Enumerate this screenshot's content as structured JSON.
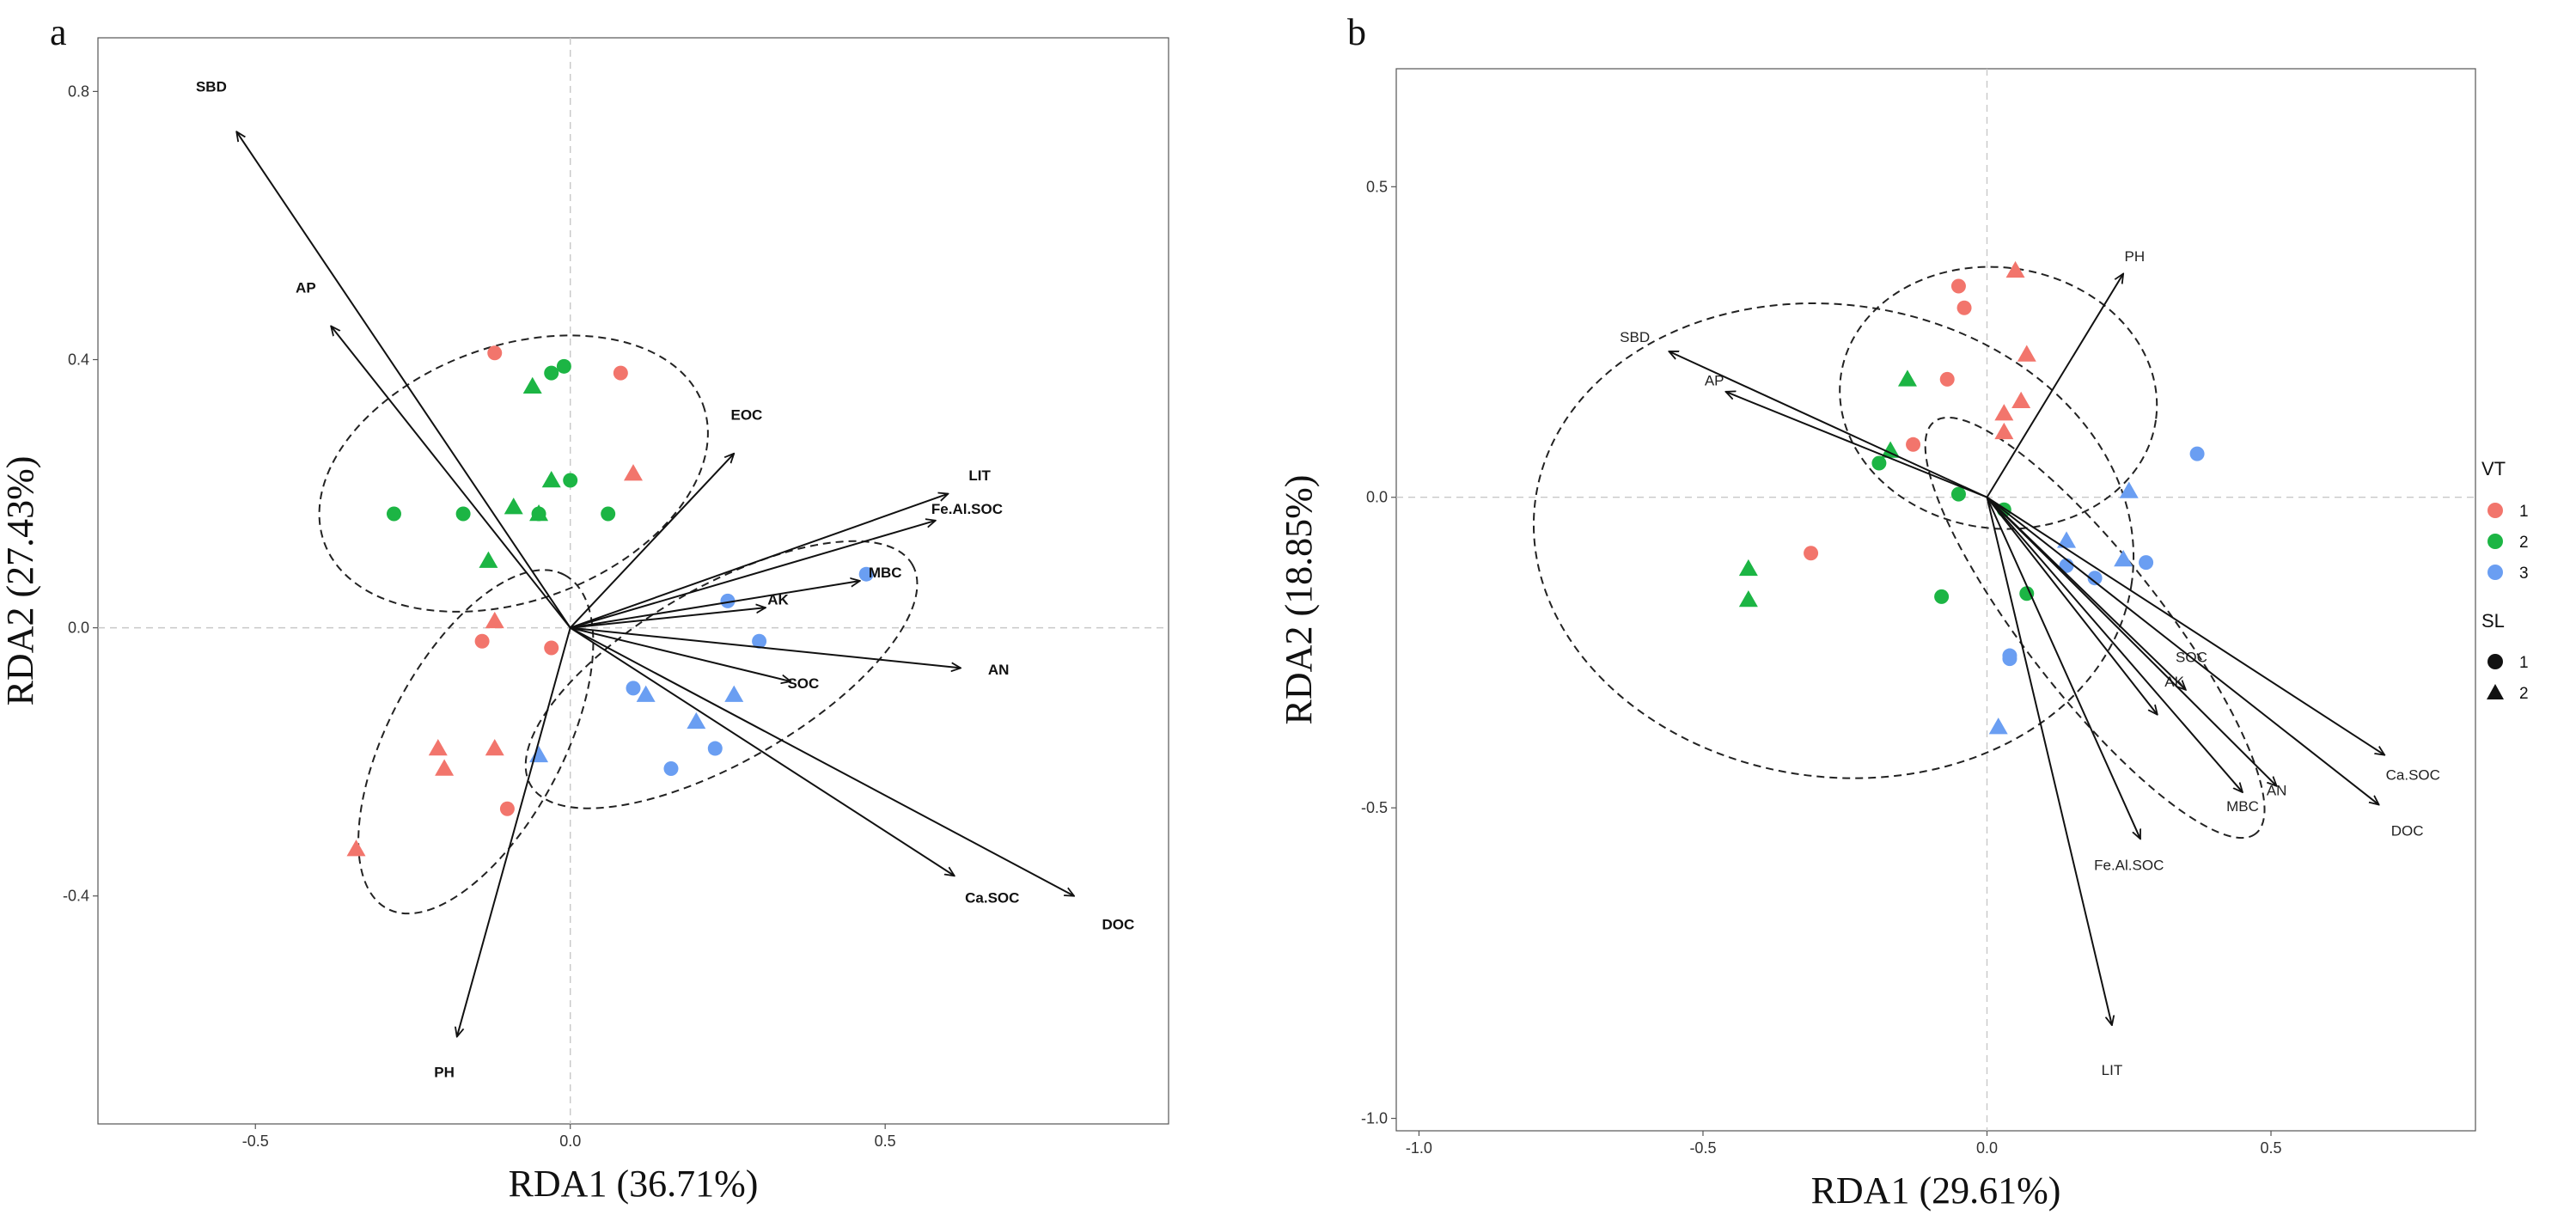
{
  "chart_data": [
    {
      "type": "scatter",
      "panel_label": "a",
      "xlabel": "RDA1  (36.71%)",
      "ylabel": "RDA2 (27.43%)",
      "xlim": [
        -0.75,
        0.95
      ],
      "ylim": [
        -0.74,
        0.88
      ],
      "xticks": [
        -0.5,
        0.0,
        0.5
      ],
      "xtick_labels": [
        "-0.5",
        "0.0",
        "0.5"
      ],
      "yticks": [
        -0.4,
        0.0,
        0.4,
        0.8
      ],
      "ytick_labels": [
        "-0.4",
        "0.0",
        "0.4",
        "0.8"
      ],
      "arrows": [
        {
          "label": "SBD",
          "x": -0.53,
          "y": 0.74,
          "lx": -0.57,
          "ly": 0.8
        },
        {
          "label": "AP",
          "x": -0.38,
          "y": 0.45,
          "lx": -0.42,
          "ly": 0.5
        },
        {
          "label": "EOC",
          "x": 0.26,
          "y": 0.26,
          "lx": 0.28,
          "ly": 0.31
        },
        {
          "label": "LIT",
          "x": 0.6,
          "y": 0.2,
          "lx": 0.65,
          "ly": 0.22
        },
        {
          "label": "Fe.Al.SOC",
          "x": 0.58,
          "y": 0.16,
          "lx": 0.63,
          "ly": 0.17
        },
        {
          "label": "MBC",
          "x": 0.46,
          "y": 0.07,
          "lx": 0.5,
          "ly": 0.075
        },
        {
          "label": "AK",
          "x": 0.31,
          "y": 0.03,
          "lx": 0.33,
          "ly": 0.035
        },
        {
          "label": "AN",
          "x": 0.62,
          "y": -0.06,
          "lx": 0.68,
          "ly": -0.07
        },
        {
          "label": "SOC",
          "x": 0.35,
          "y": -0.08,
          "lx": 0.37,
          "ly": -0.09
        },
        {
          "label": "Ca.SOC",
          "x": 0.61,
          "y": -0.37,
          "lx": 0.67,
          "ly": -0.41
        },
        {
          "label": "DOC",
          "x": 0.8,
          "y": -0.4,
          "lx": 0.87,
          "ly": -0.45
        },
        {
          "label": "PH",
          "x": -0.18,
          "y": -0.61,
          "lx": -0.2,
          "ly": -0.67
        }
      ],
      "points": [
        {
          "x": 0.08,
          "y": 0.38,
          "vt": 1,
          "sl": 1
        },
        {
          "x": -0.12,
          "y": 0.41,
          "vt": 1,
          "sl": 1
        },
        {
          "x": 0.1,
          "y": 0.23,
          "vt": 1,
          "sl": 2
        },
        {
          "x": -0.01,
          "y": 0.39,
          "vt": 2,
          "sl": 1
        },
        {
          "x": -0.05,
          "y": 0.17,
          "vt": 2,
          "sl": 1
        },
        {
          "x": -0.03,
          "y": 0.38,
          "vt": 2,
          "sl": 1
        },
        {
          "x": -0.06,
          "y": 0.36,
          "vt": 2,
          "sl": 2
        },
        {
          "x": 0.0,
          "y": 0.22,
          "vt": 2,
          "sl": 1
        },
        {
          "x": -0.03,
          "y": 0.22,
          "vt": 2,
          "sl": 2
        },
        {
          "x": -0.28,
          "y": 0.17,
          "vt": 2,
          "sl": 1
        },
        {
          "x": -0.17,
          "y": 0.17,
          "vt": 2,
          "sl": 1
        },
        {
          "x": -0.09,
          "y": 0.18,
          "vt": 2,
          "sl": 2
        },
        {
          "x": -0.05,
          "y": 0.17,
          "vt": 2,
          "sl": 2
        },
        {
          "x": 0.06,
          "y": 0.17,
          "vt": 2,
          "sl": 1
        },
        {
          "x": -0.13,
          "y": 0.1,
          "vt": 2,
          "sl": 2
        },
        {
          "x": -0.12,
          "y": 0.01,
          "vt": 1,
          "sl": 2
        },
        {
          "x": -0.14,
          "y": -0.02,
          "vt": 1,
          "sl": 1
        },
        {
          "x": -0.03,
          "y": -0.03,
          "vt": 1,
          "sl": 1
        },
        {
          "x": -0.21,
          "y": -0.18,
          "vt": 1,
          "sl": 2
        },
        {
          "x": -0.12,
          "y": -0.18,
          "vt": 1,
          "sl": 2
        },
        {
          "x": -0.2,
          "y": -0.21,
          "vt": 1,
          "sl": 2
        },
        {
          "x": -0.1,
          "y": -0.27,
          "vt": 1,
          "sl": 1
        },
        {
          "x": -0.34,
          "y": -0.33,
          "vt": 1,
          "sl": 2
        },
        {
          "x": 0.25,
          "y": 0.04,
          "vt": 3,
          "sl": 1
        },
        {
          "x": 0.3,
          "y": -0.02,
          "vt": 3,
          "sl": 1
        },
        {
          "x": 0.1,
          "y": -0.09,
          "vt": 3,
          "sl": 1
        },
        {
          "x": 0.12,
          "y": -0.1,
          "vt": 3,
          "sl": 2
        },
        {
          "x": 0.26,
          "y": -0.1,
          "vt": 3,
          "sl": 2
        },
        {
          "x": 0.23,
          "y": -0.18,
          "vt": 3,
          "sl": 1
        },
        {
          "x": 0.2,
          "y": -0.14,
          "vt": 3,
          "sl": 2
        },
        {
          "x": 0.16,
          "y": -0.21,
          "vt": 3,
          "sl": 1
        },
        {
          "x": -0.05,
          "y": -0.19,
          "vt": 3,
          "sl": 2
        },
        {
          "x": 0.47,
          "y": 0.08,
          "vt": 3,
          "sl": 1
        }
      ],
      "ellipses": [
        {
          "cx": -0.09,
          "cy": 0.23,
          "rx": 0.32,
          "ry": 0.19,
          "angle": 20
        },
        {
          "cx": -0.15,
          "cy": -0.17,
          "rx": 0.3,
          "ry": 0.13,
          "angle": 62
        },
        {
          "cx": 0.24,
          "cy": -0.07,
          "rx": 0.35,
          "ry": 0.13,
          "angle": 30
        }
      ]
    },
    {
      "type": "scatter",
      "panel_label": "b",
      "xlabel": "RDA1 (29.61%)",
      "ylabel": "RDA2 (18.85%)",
      "xlim": [
        -1.04,
        0.86
      ],
      "ylim": [
        -1.02,
        0.69
      ],
      "xticks": [
        -1.0,
        -0.5,
        0.0,
        0.5
      ],
      "xtick_labels": [
        "-1.0",
        "-0.5",
        "0.0",
        "0.5"
      ],
      "yticks": [
        -1.0,
        -0.5,
        0.0,
        0.5
      ],
      "ytick_labels": [
        "-1.0",
        "-0.5",
        "0.0",
        "0.5"
      ],
      "arrows": [
        {
          "label": "PH",
          "x": 0.24,
          "y": 0.36,
          "lx": 0.26,
          "ly": 0.38
        },
        {
          "label": "SBD",
          "x": -0.56,
          "y": 0.235,
          "lx": -0.62,
          "ly": 0.25
        },
        {
          "label": "AP",
          "x": -0.46,
          "y": 0.17,
          "lx": -0.48,
          "ly": 0.18
        },
        {
          "label": "SOC",
          "x": 0.35,
          "y": -0.31,
          "lx": 0.36,
          "ly": -0.265
        },
        {
          "label": "AK",
          "x": 0.3,
          "y": -0.35,
          "lx": 0.33,
          "ly": -0.305
        },
        {
          "label": "Ca.SOC",
          "x": 0.7,
          "y": -0.415,
          "lx": 0.75,
          "ly": -0.455
        },
        {
          "label": "DOC",
          "x": 0.69,
          "y": -0.495,
          "lx": 0.74,
          "ly": -0.545
        },
        {
          "label": "AN",
          "x": 0.51,
          "y": -0.465,
          "lx": 0.51,
          "ly": -0.48
        },
        {
          "label": "MBC",
          "x": 0.45,
          "y": -0.475,
          "lx": 0.45,
          "ly": -0.505
        },
        {
          "label": "Fe.Al.SOC",
          "x": 0.27,
          "y": -0.55,
          "lx": 0.25,
          "ly": -0.6
        },
        {
          "label": "LIT",
          "x": 0.22,
          "y": -0.85,
          "lx": 0.22,
          "ly": -0.93
        }
      ],
      "points": [
        {
          "x": -0.05,
          "y": 0.34,
          "vt": 1,
          "sl": 1
        },
        {
          "x": -0.04,
          "y": 0.305,
          "vt": 1,
          "sl": 1
        },
        {
          "x": 0.05,
          "y": 0.365,
          "vt": 1,
          "sl": 2
        },
        {
          "x": 0.07,
          "y": 0.23,
          "vt": 1,
          "sl": 2
        },
        {
          "x": -0.07,
          "y": 0.19,
          "vt": 1,
          "sl": 1
        },
        {
          "x": 0.06,
          "y": 0.155,
          "vt": 1,
          "sl": 2
        },
        {
          "x": 0.03,
          "y": 0.135,
          "vt": 1,
          "sl": 2
        },
        {
          "x": 0.03,
          "y": 0.105,
          "vt": 1,
          "sl": 2
        },
        {
          "x": -0.13,
          "y": 0.085,
          "vt": 1,
          "sl": 1
        },
        {
          "x": -0.31,
          "y": -0.09,
          "vt": 1,
          "sl": 1
        },
        {
          "x": -0.14,
          "y": 0.19,
          "vt": 2,
          "sl": 2
        },
        {
          "x": -0.17,
          "y": 0.075,
          "vt": 2,
          "sl": 2
        },
        {
          "x": -0.19,
          "y": 0.055,
          "vt": 2,
          "sl": 1
        },
        {
          "x": -0.05,
          "y": 0.005,
          "vt": 2,
          "sl": 1
        },
        {
          "x": 0.03,
          "y": -0.02,
          "vt": 2,
          "sl": 1
        },
        {
          "x": -0.42,
          "y": -0.115,
          "vt": 2,
          "sl": 2
        },
        {
          "x": -0.42,
          "y": -0.165,
          "vt": 2,
          "sl": 2
        },
        {
          "x": -0.08,
          "y": -0.16,
          "vt": 2,
          "sl": 1
        },
        {
          "x": 0.07,
          "y": -0.155,
          "vt": 2,
          "sl": 1
        },
        {
          "x": 0.37,
          "y": 0.07,
          "vt": 3,
          "sl": 1
        },
        {
          "x": 0.25,
          "y": 0.01,
          "vt": 3,
          "sl": 2
        },
        {
          "x": 0.14,
          "y": -0.07,
          "vt": 3,
          "sl": 2
        },
        {
          "x": 0.14,
          "y": -0.11,
          "vt": 3,
          "sl": 1
        },
        {
          "x": 0.19,
          "y": -0.13,
          "vt": 3,
          "sl": 1
        },
        {
          "x": 0.24,
          "y": -0.1,
          "vt": 3,
          "sl": 2
        },
        {
          "x": 0.28,
          "y": -0.105,
          "vt": 3,
          "sl": 1
        },
        {
          "x": 0.04,
          "y": -0.255,
          "vt": 3,
          "sl": 1
        },
        {
          "x": 0.04,
          "y": -0.26,
          "vt": 3,
          "sl": 1
        },
        {
          "x": 0.02,
          "y": -0.37,
          "vt": 3,
          "sl": 2
        }
      ],
      "ellipses": [
        {
          "cx": 0.02,
          "cy": 0.16,
          "rx": 0.28,
          "ry": 0.21,
          "angle": -8
        },
        {
          "cx": -0.27,
          "cy": -0.07,
          "rx": 0.53,
          "ry": 0.38,
          "angle": -8
        },
        {
          "cx": 0.19,
          "cy": -0.21,
          "rx": 0.46,
          "ry": 0.11,
          "angle": -52
        }
      ]
    }
  ],
  "legend": {
    "vt_title": "VT",
    "vt_items": [
      {
        "label": "1",
        "color": "#F2756C"
      },
      {
        "label": "2",
        "color": "#1CB544"
      },
      {
        "label": "3",
        "color": "#6A9EF2"
      }
    ],
    "sl_title": "SL",
    "sl_items": [
      {
        "label": "1",
        "shape": "circle"
      },
      {
        "label": "2",
        "shape": "triangle"
      }
    ]
  }
}
